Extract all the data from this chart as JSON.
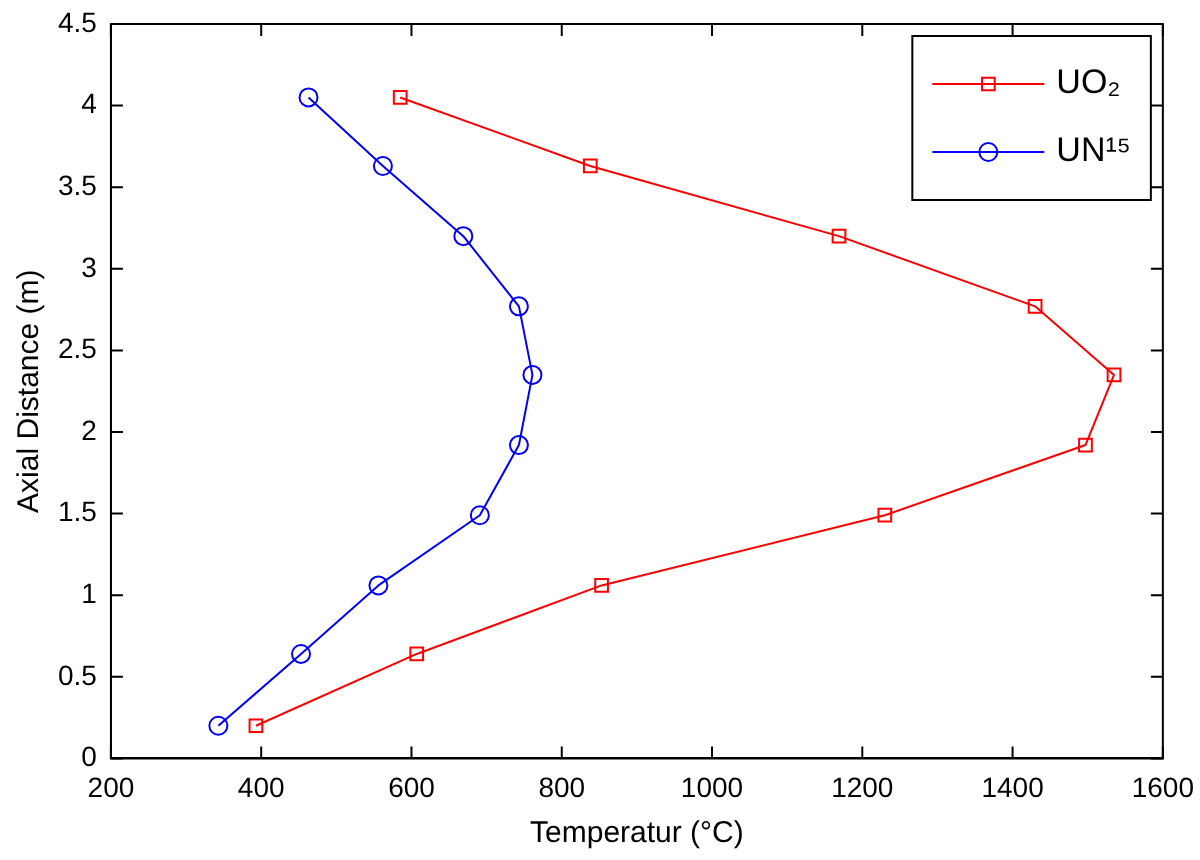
{
  "chart_data": {
    "type": "line",
    "xlabel": "Temperatur (°C)",
    "ylabel": "Axial Distance (m)",
    "xlim": [
      200,
      1600
    ],
    "xticks": [
      200,
      400,
      600,
      800,
      1000,
      1200,
      1400,
      1600
    ],
    "ylim": [
      0,
      4.5
    ],
    "yticks": [
      0,
      0.5,
      1,
      1.5,
      2,
      2.5,
      3,
      3.5,
      4,
      4.5
    ],
    "grid": false,
    "legend": "top right",
    "line_style": "solid",
    "series": [
      {
        "name": "UO₂",
        "color": "#ff0000",
        "marker": "square",
        "x": [
          393,
          607,
          853,
          1230,
          1497,
          1535,
          1430,
          1169,
          838,
          585
        ],
        "values": [
          0.2,
          0.64,
          1.06,
          1.49,
          1.92,
          2.35,
          2.77,
          3.2,
          3.63,
          4.05
        ]
      },
      {
        "name": "UN¹⁵",
        "color": "#0000ff",
        "marker": "circle",
        "x": [
          343,
          453,
          556,
          691,
          743,
          761,
          743,
          669,
          562,
          463
        ],
        "values": [
          0.2,
          0.64,
          1.06,
          1.49,
          1.92,
          2.35,
          2.77,
          3.2,
          3.63,
          4.05
        ]
      }
    ]
  }
}
